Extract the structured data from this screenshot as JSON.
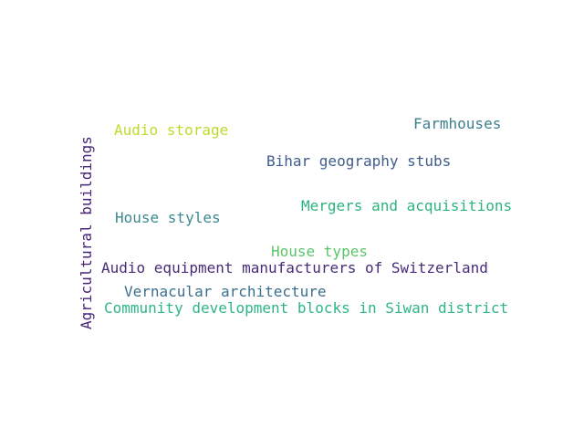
{
  "words": [
    {
      "id": "w0",
      "text": "Audio storage",
      "color": "#bcdc2b"
    },
    {
      "id": "w1",
      "text": "Farmhouses",
      "color": "#3b7f8f"
    },
    {
      "id": "w2",
      "text": "Bihar geography stubs",
      "color": "#3f5c8a"
    },
    {
      "id": "w3",
      "text": "Mergers and acquisitions",
      "color": "#2db37c"
    },
    {
      "id": "w4",
      "text": "House styles",
      "color": "#3a8a8f"
    },
    {
      "id": "w5",
      "text": "House types",
      "color": "#5bc469"
    },
    {
      "id": "w6",
      "text": "Audio equipment manufacturers of Switzerland",
      "color": "#472c7a"
    },
    {
      "id": "w7",
      "text": "Vernacular architecture",
      "color": "#3b6f8e"
    },
    {
      "id": "w8",
      "text": "Community development blocks in Siwan district",
      "color": "#2fb48a"
    },
    {
      "id": "w9",
      "text": "Agricultural buildings",
      "color": "#482576"
    }
  ]
}
